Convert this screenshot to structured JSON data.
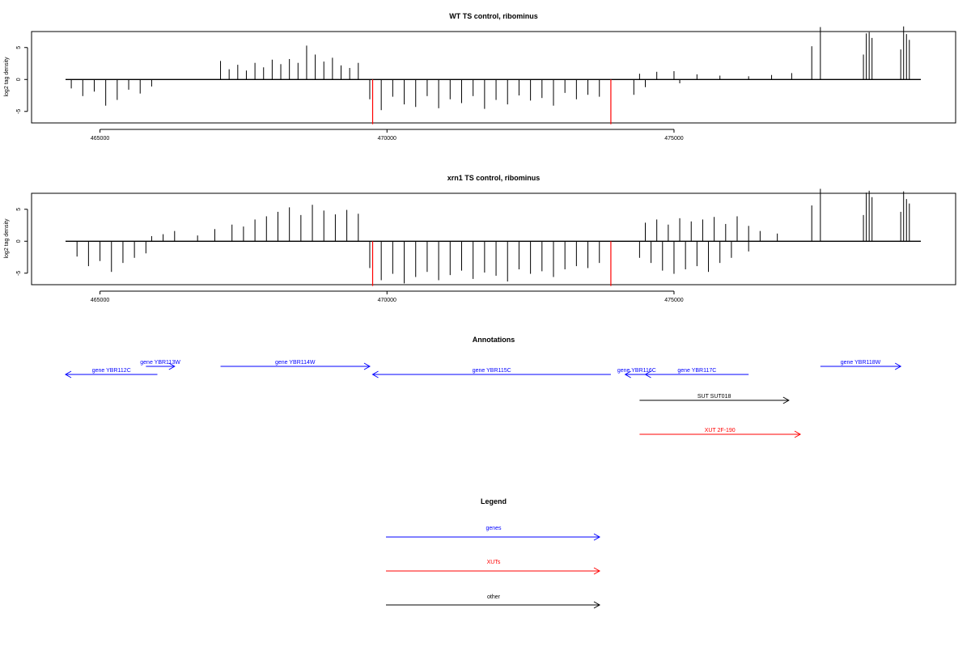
{
  "chart_data": [
    {
      "type": "bar",
      "title": "WT TS control, ribominus",
      "xlabel": "",
      "ylabel": "log2 tag density",
      "xlim": [
        464400,
        479300
      ],
      "ylim": [
        -6.8,
        7.5
      ],
      "x_ticks": [
        465000,
        470000,
        475000
      ],
      "x_tick_labels": [
        "465000",
        "470000",
        "475000"
      ],
      "y_ticks": [
        -5,
        0,
        5
      ],
      "y_tick_labels": [
        "-5",
        "0",
        "5"
      ],
      "grid": false,
      "series": [
        {
          "strand": "plus",
          "color": "#000000",
          "x": [
            467100,
            467250,
            467400,
            467550,
            467700,
            467850,
            468000,
            468150,
            468300,
            468450,
            468600,
            468750,
            468900,
            469050,
            469200,
            469350,
            469500,
            474400,
            474700,
            475000,
            475400,
            475800,
            476300,
            476700,
            477050,
            477400,
            477550,
            478300,
            478350,
            478400,
            478450,
            478950,
            479000,
            479050,
            479100
          ],
          "values": [
            2.9,
            1.6,
            2.3,
            1.4,
            2.6,
            1.9,
            3.1,
            2.4,
            3.2,
            2.6,
            5.3,
            3.9,
            2.8,
            3.4,
            2.2,
            1.8,
            2.6,
            0.9,
            1.2,
            1.3,
            0.8,
            0.6,
            0.5,
            0.7,
            1.0,
            5.2,
            8.2,
            3.9,
            7.2,
            7.4,
            6.5,
            4.7,
            8.3,
            7.1,
            6.2
          ]
        },
        {
          "strand": "minus",
          "color": "#000000",
          "x": [
            464500,
            464700,
            464900,
            465100,
            465300,
            465500,
            465700,
            465900,
            469700,
            469900,
            470100,
            470300,
            470500,
            470700,
            470900,
            471100,
            471300,
            471500,
            471700,
            471900,
            472100,
            472300,
            472500,
            472700,
            472900,
            473100,
            473300,
            473500,
            473700,
            474300,
            474500,
            475100
          ],
          "values": [
            -1.4,
            -2.6,
            -1.9,
            -4.1,
            -3.2,
            -1.6,
            -2.2,
            -1.1,
            -3.1,
            -4.8,
            -2.7,
            -3.9,
            -4.3,
            -2.6,
            -4.5,
            -3.1,
            -3.7,
            -2.6,
            -4.6,
            -3.2,
            -3.9,
            -2.5,
            -3.3,
            -2.9,
            -4.1,
            -2.1,
            -3.1,
            -2.4,
            -2.7,
            -2.4,
            -1.2,
            -0.6
          ]
        },
        {
          "strand": "minus-highlight",
          "color": "#ff0000",
          "x": [
            469750,
            473900
          ],
          "values": [
            -7.0,
            -7.0
          ]
        }
      ]
    },
    {
      "type": "bar",
      "title": "xrn1 TS control, ribominus",
      "xlabel": "",
      "ylabel": "log2 tag density",
      "xlim": [
        464400,
        479300
      ],
      "ylim": [
        -6.8,
        7.5
      ],
      "x_ticks": [
        465000,
        470000,
        475000
      ],
      "x_tick_labels": [
        "465000",
        "470000",
        "475000"
      ],
      "y_ticks": [
        -5,
        0,
        5
      ],
      "y_tick_labels": [
        "-5",
        "0",
        "5"
      ],
      "grid": false,
      "series": [
        {
          "strand": "plus",
          "color": "#000000",
          "x": [
            465900,
            466100,
            466300,
            466700,
            467000,
            467300,
            467500,
            467700,
            467900,
            468100,
            468300,
            468500,
            468700,
            468900,
            469100,
            469300,
            469500,
            474500,
            474700,
            474900,
            475100,
            475300,
            475500,
            475700,
            475900,
            476100,
            476300,
            476500,
            476800,
            477400,
            477550,
            478300,
            478350,
            478400,
            478450,
            478950,
            479000,
            479050,
            479100
          ],
          "values": [
            0.8,
            1.1,
            1.6,
            0.9,
            1.9,
            2.6,
            2.3,
            3.4,
            3.9,
            4.6,
            5.3,
            4.1,
            5.7,
            4.8,
            4.2,
            4.9,
            4.3,
            2.9,
            3.4,
            2.6,
            3.6,
            3.1,
            3.4,
            3.8,
            2.7,
            3.9,
            2.4,
            1.6,
            1.2,
            5.6,
            8.2,
            4.1,
            7.6,
            7.9,
            6.9,
            4.6,
            7.8,
            6.6,
            5.9
          ]
        },
        {
          "strand": "minus",
          "color": "#000000",
          "x": [
            464600,
            464800,
            465000,
            465200,
            465400,
            465600,
            465800,
            469700,
            469900,
            470100,
            470300,
            470500,
            470700,
            470900,
            471100,
            471300,
            471500,
            471700,
            471900,
            472100,
            472300,
            472500,
            472700,
            472900,
            473100,
            473300,
            473500,
            473700,
            474400,
            474600,
            474800,
            475000,
            475200,
            475400,
            475600,
            475800,
            476000,
            476300
          ],
          "values": [
            -2.4,
            -3.9,
            -3.1,
            -4.8,
            -3.4,
            -2.6,
            -1.9,
            -4.2,
            -6.1,
            -5.1,
            -6.6,
            -5.6,
            -4.8,
            -6.1,
            -5.3,
            -4.6,
            -5.9,
            -4.9,
            -5.4,
            -6.3,
            -4.4,
            -5.1,
            -4.7,
            -5.6,
            -4.4,
            -3.9,
            -4.2,
            -3.4,
            -2.6,
            -3.4,
            -4.6,
            -5.1,
            -4.4,
            -3.9,
            -4.8,
            -3.4,
            -2.6,
            -1.6
          ]
        },
        {
          "strand": "minus-highlight",
          "color": "#ff0000",
          "x": [
            469750,
            473900
          ],
          "values": [
            -7.0,
            -7.0
          ]
        }
      ]
    }
  ],
  "annotations": {
    "title": "Annotations",
    "features": [
      {
        "label": "gene YBR112C",
        "color": "#0000ff",
        "start": 464400,
        "end": 466000,
        "direction": "left",
        "row": 1
      },
      {
        "label": "gene YBR113W",
        "color": "#0000ff",
        "start": 465800,
        "end": 466300,
        "direction": "right",
        "row": 0
      },
      {
        "label": "gene YBR114W",
        "color": "#0000ff",
        "start": 467100,
        "end": 469700,
        "direction": "right",
        "row": 0
      },
      {
        "label": "gene YBR115C",
        "color": "#0000ff",
        "start": 469750,
        "end": 473900,
        "direction": "left",
        "row": 1
      },
      {
        "label": "gene YBR116C",
        "color": "#0000ff",
        "start": 474150,
        "end": 474550,
        "direction": "left",
        "row": 1
      },
      {
        "label": "gene YBR117C",
        "color": "#0000ff",
        "start": 474500,
        "end": 476300,
        "direction": "left",
        "row": 1
      },
      {
        "label": "gene YBR118W",
        "color": "#0000ff",
        "start": 477550,
        "end": 478950,
        "direction": "right",
        "row": 0
      },
      {
        "label": "SUT SUT018",
        "color": "#000000",
        "start": 474400,
        "end": 477000,
        "direction": "right",
        "row": 2
      },
      {
        "label": "XUT 2F-190",
        "color": "#ff0000",
        "start": 474400,
        "end": 477200,
        "direction": "right",
        "row": 3
      }
    ]
  },
  "legend": {
    "title": "Legend",
    "items": [
      {
        "label": "genes",
        "color": "#0000ff"
      },
      {
        "label": "XUTs",
        "color": "#ff0000"
      },
      {
        "label": "other",
        "color": "#000000"
      }
    ]
  }
}
